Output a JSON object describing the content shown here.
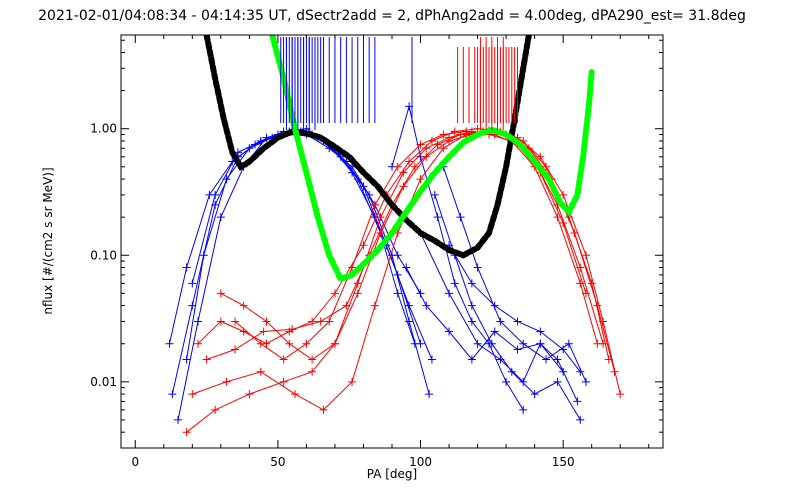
{
  "chart_data": {
    "type": "line",
    "title": "2021-02-01/04:08:34 - 04:14:35 UT, dSectr2add = 2, dPhAng2add = 4.00deg, dPA290_est=  31.8deg",
    "xlabel": "PA [deg]",
    "ylabel": "nflux [#/(cm2 s sr MeV)]",
    "xlim": [
      -5,
      185
    ],
    "ylim": [
      0.003,
      5.5
    ],
    "yscale": "log",
    "grid": false,
    "x_ticks": [
      0,
      50,
      100,
      150
    ],
    "x_tick_labels": [
      "0",
      "50",
      "100",
      "150"
    ],
    "y_ticks": [
      0.01,
      0.1,
      1.0
    ],
    "y_tick_labels": [
      "0.01",
      "0.10",
      "1.00"
    ],
    "colors": {
      "blue": "#0000ff",
      "red": "#ff0000",
      "black_fit": "#000000",
      "green_fit": "#00ff00"
    },
    "series": [
      {
        "color": "blue",
        "style": "line-plus",
        "points": [
          [
            13,
            0.008
          ],
          [
            20,
            0.04
          ],
          [
            28,
            0.25
          ],
          [
            36,
            0.6
          ],
          [
            44,
            0.8
          ],
          [
            52,
            0.9
          ],
          [
            56,
            0.95
          ],
          [
            62,
            0.9
          ],
          [
            70,
            0.7
          ],
          [
            78,
            0.4
          ],
          [
            86,
            0.15
          ],
          [
            92,
            0.05
          ],
          [
            98,
            0.02
          ]
        ]
      },
      {
        "color": "blue",
        "style": "line-plus",
        "points": [
          [
            12,
            0.02
          ],
          [
            18,
            0.08
          ],
          [
            26,
            0.3
          ],
          [
            34,
            0.55
          ],
          [
            42,
            0.75
          ],
          [
            50,
            0.9
          ],
          [
            58,
            0.95
          ],
          [
            66,
            0.8
          ],
          [
            74,
            0.55
          ],
          [
            82,
            0.3
          ],
          [
            90,
            0.1
          ],
          [
            96,
            0.03
          ],
          [
            103,
            0.008
          ]
        ]
      },
      {
        "color": "blue",
        "style": "line-plus",
        "points": [
          [
            15,
            0.005
          ],
          [
            22,
            0.03
          ],
          [
            30,
            0.2
          ],
          [
            38,
            0.5
          ],
          [
            46,
            0.85
          ],
          [
            54,
            0.95
          ],
          [
            60,
            1.0
          ],
          [
            68,
            0.75
          ],
          [
            76,
            0.45
          ],
          [
            84,
            0.2
          ],
          [
            92,
            0.07
          ],
          [
            100,
            0.02
          ]
        ]
      },
      {
        "color": "blue",
        "style": "line-plus",
        "points": [
          [
            18,
            0.015
          ],
          [
            24,
            0.1
          ],
          [
            32,
            0.4
          ],
          [
            40,
            0.7
          ],
          [
            48,
            0.85
          ],
          [
            56,
            0.9
          ],
          [
            64,
            0.85
          ],
          [
            72,
            0.6
          ],
          [
            80,
            0.35
          ],
          [
            88,
            0.12
          ],
          [
            96,
            0.04
          ],
          [
            104,
            0.015
          ]
        ]
      },
      {
        "color": "blue",
        "style": "line-plus",
        "points": [
          [
            20,
            0.06
          ],
          [
            28,
            0.3
          ],
          [
            36,
            0.65
          ],
          [
            44,
            0.8
          ],
          [
            52,
            0.95
          ],
          [
            60,
            0.9
          ],
          [
            68,
            0.7
          ],
          [
            76,
            0.5
          ],
          [
            84,
            0.25
          ],
          [
            92,
            0.1
          ],
          [
            100,
            0.05
          ]
        ]
      },
      {
        "color": "blue",
        "style": "line-plus",
        "points": [
          [
            90,
            0.5
          ],
          [
            96,
            1.5
          ],
          [
            100,
            0.6
          ],
          [
            106,
            0.2
          ],
          [
            112,
            0.06
          ],
          [
            118,
            0.03
          ],
          [
            124,
            0.02
          ],
          [
            130,
            0.01
          ],
          [
            136,
            0.006
          ]
        ]
      },
      {
        "color": "blue",
        "style": "line-plus",
        "points": [
          [
            100,
            0.15
          ],
          [
            110,
            0.05
          ],
          [
            120,
            0.02
          ],
          [
            128,
            0.015
          ],
          [
            136,
            0.01
          ],
          [
            142,
            0.02
          ],
          [
            148,
            0.015
          ],
          [
            155,
            0.007
          ]
        ]
      },
      {
        "color": "blue",
        "style": "line-plus",
        "points": [
          [
            105,
            0.3
          ],
          [
            112,
            0.1
          ],
          [
            118,
            0.04
          ],
          [
            125,
            0.02
          ],
          [
            132,
            0.012
          ],
          [
            140,
            0.008
          ],
          [
            148,
            0.01
          ],
          [
            156,
            0.005
          ]
        ]
      },
      {
        "color": "blue",
        "style": "line-plus",
        "points": [
          [
            95,
            0.08
          ],
          [
            102,
            0.04
          ],
          [
            110,
            0.025
          ],
          [
            118,
            0.015
          ],
          [
            126,
            0.025
          ],
          [
            134,
            0.018
          ],
          [
            142,
            0.02
          ],
          [
            150,
            0.012
          ]
        ]
      },
      {
        "color": "blue",
        "style": "line-plus",
        "points": [
          [
            108,
            0.5
          ],
          [
            114,
            0.2
          ],
          [
            120,
            0.08
          ],
          [
            128,
            0.03
          ],
          [
            136,
            0.02
          ],
          [
            144,
            0.015
          ],
          [
            152,
            0.02
          ],
          [
            158,
            0.01
          ]
        ]
      },
      {
        "color": "blue",
        "style": "line-plus",
        "points": [
          [
            110,
            0.12
          ],
          [
            118,
            0.06
          ],
          [
            126,
            0.04
          ],
          [
            134,
            0.03
          ],
          [
            142,
            0.025
          ],
          [
            150,
            0.018
          ],
          [
            156,
            0.012
          ]
        ]
      },
      {
        "color": "red",
        "style": "line-plus",
        "points": [
          [
            18,
            0.004
          ],
          [
            28,
            0.006
          ],
          [
            40,
            0.008
          ],
          [
            52,
            0.01
          ],
          [
            62,
            0.012
          ],
          [
            70,
            0.02
          ],
          [
            78,
            0.05
          ],
          [
            86,
            0.15
          ],
          [
            94,
            0.35
          ],
          [
            102,
            0.6
          ],
          [
            110,
            0.8
          ],
          [
            118,
            0.9
          ],
          [
            126,
            0.95
          ],
          [
            134,
            0.85
          ],
          [
            142,
            0.6
          ],
          [
            150,
            0.3
          ],
          [
            158,
            0.1
          ],
          [
            164,
            0.03
          ],
          [
            170,
            0.008
          ]
        ]
      },
      {
        "color": "red",
        "style": "line-plus",
        "points": [
          [
            22,
            0.02
          ],
          [
            30,
            0.03
          ],
          [
            38,
            0.025
          ],
          [
            46,
            0.02
          ],
          [
            54,
            0.025
          ],
          [
            62,
            0.03
          ],
          [
            70,
            0.05
          ],
          [
            80,
            0.12
          ],
          [
            88,
            0.3
          ],
          [
            96,
            0.55
          ],
          [
            104,
            0.8
          ],
          [
            112,
            0.95
          ],
          [
            120,
            1.0
          ],
          [
            128,
            0.95
          ],
          [
            136,
            0.8
          ],
          [
            144,
            0.5
          ],
          [
            152,
            0.2
          ],
          [
            160,
            0.06
          ],
          [
            166,
            0.015
          ]
        ]
      },
      {
        "color": "red",
        "style": "line-plus",
        "points": [
          [
            25,
            0.015
          ],
          [
            35,
            0.018
          ],
          [
            45,
            0.025
          ],
          [
            55,
            0.026
          ],
          [
            65,
            0.03
          ],
          [
            74,
            0.04
          ],
          [
            82,
            0.1
          ],
          [
            90,
            0.25
          ],
          [
            98,
            0.5
          ],
          [
            106,
            0.75
          ],
          [
            114,
            0.9
          ],
          [
            122,
            0.95
          ],
          [
            130,
            0.9
          ],
          [
            138,
            0.7
          ],
          [
            146,
            0.4
          ],
          [
            154,
            0.15
          ],
          [
            162,
            0.04
          ],
          [
            168,
            0.012
          ]
        ]
      },
      {
        "color": "red",
        "style": "line-plus",
        "points": [
          [
            30,
            0.05
          ],
          [
            38,
            0.04
          ],
          [
            46,
            0.03
          ],
          [
            54,
            0.02
          ],
          [
            62,
            0.015
          ],
          [
            70,
            0.02
          ],
          [
            78,
            0.06
          ],
          [
            86,
            0.2
          ],
          [
            94,
            0.45
          ],
          [
            102,
            0.7
          ],
          [
            110,
            0.85
          ],
          [
            118,
            0.95
          ],
          [
            126,
            0.9
          ],
          [
            134,
            0.75
          ],
          [
            142,
            0.45
          ],
          [
            150,
            0.18
          ],
          [
            158,
            0.05
          ]
        ]
      },
      {
        "color": "red",
        "style": "line-plus",
        "points": [
          [
            20,
            0.008
          ],
          [
            32,
            0.01
          ],
          [
            44,
            0.012
          ],
          [
            56,
            0.008
          ],
          [
            66,
            0.006
          ],
          [
            76,
            0.01
          ],
          [
            84,
            0.04
          ],
          [
            92,
            0.15
          ],
          [
            100,
            0.4
          ],
          [
            108,
            0.7
          ],
          [
            116,
            0.9
          ],
          [
            124,
            0.97
          ],
          [
            132,
            0.85
          ],
          [
            140,
            0.55
          ],
          [
            148,
            0.25
          ],
          [
            156,
            0.08
          ],
          [
            164,
            0.02
          ]
        ]
      },
      {
        "color": "red",
        "style": "line-plus",
        "points": [
          [
            35,
            0.03
          ],
          [
            44,
            0.02
          ],
          [
            52,
            0.015
          ],
          [
            60,
            0.02
          ],
          [
            68,
            0.03
          ],
          [
            76,
            0.08
          ],
          [
            84,
            0.25
          ],
          [
            92,
            0.5
          ],
          [
            100,
            0.75
          ],
          [
            108,
            0.9
          ],
          [
            116,
            0.95
          ],
          [
            124,
            0.9
          ],
          [
            132,
            0.8
          ],
          [
            140,
            0.5
          ],
          [
            148,
            0.2
          ],
          [
            156,
            0.06
          ],
          [
            162,
            0.02
          ]
        ]
      },
      {
        "color": "black_fit",
        "style": "thick-dashed",
        "points": [
          [
            25,
            5.5
          ],
          [
            28,
            2.5
          ],
          [
            31,
            1.2
          ],
          [
            34,
            0.65
          ],
          [
            37,
            0.5
          ],
          [
            40,
            0.55
          ],
          [
            45,
            0.7
          ],
          [
            50,
            0.85
          ],
          [
            55,
            0.95
          ],
          [
            60,
            0.92
          ],
          [
            65,
            0.85
          ],
          [
            70,
            0.72
          ],
          [
            75,
            0.6
          ],
          [
            80,
            0.45
          ],
          [
            85,
            0.35
          ],
          [
            90,
            0.25
          ],
          [
            95,
            0.19
          ],
          [
            100,
            0.15
          ],
          [
            105,
            0.13
          ],
          [
            110,
            0.11
          ],
          [
            115,
            0.1
          ],
          [
            120,
            0.115
          ],
          [
            124,
            0.15
          ],
          [
            127,
            0.25
          ],
          [
            130,
            0.5
          ],
          [
            133,
            1.2
          ],
          [
            136,
            3.0
          ],
          [
            138,
            5.5
          ]
        ]
      },
      {
        "color": "green_fit",
        "style": "thick-dashed",
        "points": [
          [
            48,
            5.5
          ],
          [
            52,
            2.5
          ],
          [
            56,
            1.0
          ],
          [
            60,
            0.45
          ],
          [
            64,
            0.2
          ],
          [
            68,
            0.1
          ],
          [
            72,
            0.065
          ],
          [
            76,
            0.07
          ],
          [
            80,
            0.085
          ],
          [
            85,
            0.11
          ],
          [
            90,
            0.15
          ],
          [
            95,
            0.22
          ],
          [
            100,
            0.32
          ],
          [
            105,
            0.45
          ],
          [
            110,
            0.6
          ],
          [
            115,
            0.78
          ],
          [
            120,
            0.9
          ],
          [
            125,
            0.98
          ],
          [
            130,
            0.9
          ],
          [
            135,
            0.75
          ],
          [
            140,
            0.55
          ],
          [
            145,
            0.4
          ],
          [
            149,
            0.26
          ],
          [
            152,
            0.22
          ],
          [
            155,
            0.3
          ],
          [
            157,
            0.6
          ],
          [
            159,
            1.5
          ],
          [
            160,
            2.8
          ]
        ]
      }
    ],
    "blue_vertical_marks": [
      51,
      52,
      53,
      54,
      55,
      56,
      57,
      58,
      59,
      60,
      61,
      62,
      63,
      64,
      65,
      66,
      68,
      70,
      72,
      74,
      76,
      78,
      80,
      82,
      84
    ],
    "blue_vertical_marks_long": [
      53,
      55,
      57,
      59,
      61,
      63
    ],
    "blue_marks_isolated": [
      97
    ],
    "red_vertical_marks": [
      113,
      115,
      117,
      119,
      120,
      121,
      122,
      123,
      124,
      125,
      126,
      127,
      128,
      129,
      130,
      131,
      132,
      133,
      134
    ],
    "red_vertical_marks_long": [
      121,
      123,
      125,
      127,
      129
    ]
  }
}
